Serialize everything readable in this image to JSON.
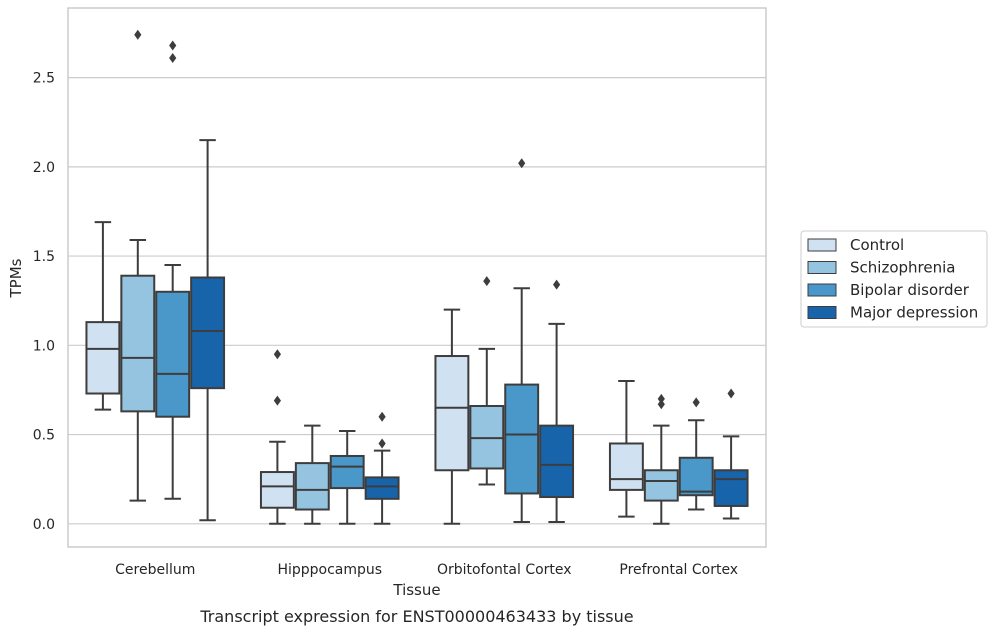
{
  "chart_data": {
    "type": "boxplot",
    "title": "",
    "caption": "Transcript expression for ENST00000463433 by tissue",
    "xlabel": "Tissue",
    "ylabel": "TPMs",
    "ylim": [
      -0.13,
      2.89
    ],
    "yticks": [
      0.0,
      0.5,
      1.0,
      1.5,
      2.0,
      2.5
    ],
    "ytick_labels": [
      "0.0",
      "0.5",
      "1.0",
      "1.5",
      "2.0",
      "2.5"
    ],
    "grid": "horizontal",
    "legend_position": "right",
    "categories": [
      "Cerebellum",
      "Hipppocampus",
      "Orbitofontal Cortex",
      "Prefrontal Cortex"
    ],
    "series": [
      {
        "name": "Control",
        "color": "#d0e1f2",
        "boxes": [
          {
            "whisker_low": 0.64,
            "q1": 0.73,
            "median": 0.98,
            "q3": 1.13,
            "whisker_high": 1.69,
            "outliers": []
          },
          {
            "whisker_low": 0.0,
            "q1": 0.09,
            "median": 0.21,
            "q3": 0.29,
            "whisker_high": 0.46,
            "outliers": [
              0.69,
              0.95
            ]
          },
          {
            "whisker_low": 0.0,
            "q1": 0.3,
            "median": 0.65,
            "q3": 0.94,
            "whisker_high": 1.2,
            "outliers": []
          },
          {
            "whisker_low": 0.04,
            "q1": 0.19,
            "median": 0.25,
            "q3": 0.45,
            "whisker_high": 0.8,
            "outliers": []
          }
        ]
      },
      {
        "name": "Schizophrenia",
        "color": "#94c4df",
        "boxes": [
          {
            "whisker_low": 0.13,
            "q1": 0.63,
            "median": 0.93,
            "q3": 1.39,
            "whisker_high": 1.59,
            "outliers": [
              2.74
            ]
          },
          {
            "whisker_low": 0.0,
            "q1": 0.08,
            "median": 0.19,
            "q3": 0.34,
            "whisker_high": 0.55,
            "outliers": []
          },
          {
            "whisker_low": 0.22,
            "q1": 0.31,
            "median": 0.48,
            "q3": 0.66,
            "whisker_high": 0.98,
            "outliers": [
              1.36
            ]
          },
          {
            "whisker_low": 0.0,
            "q1": 0.13,
            "median": 0.24,
            "q3": 0.3,
            "whisker_high": 0.55,
            "outliers": [
              0.67,
              0.7
            ]
          }
        ]
      },
      {
        "name": "Bipolar disorder",
        "color": "#4a98c9",
        "boxes": [
          {
            "whisker_low": 0.14,
            "q1": 0.6,
            "median": 0.84,
            "q3": 1.3,
            "whisker_high": 1.45,
            "outliers": [
              2.61,
              2.68
            ]
          },
          {
            "whisker_low": 0.0,
            "q1": 0.2,
            "median": 0.32,
            "q3": 0.38,
            "whisker_high": 0.52,
            "outliers": []
          },
          {
            "whisker_low": 0.01,
            "q1": 0.17,
            "median": 0.5,
            "q3": 0.78,
            "whisker_high": 1.32,
            "outliers": [
              2.02
            ]
          },
          {
            "whisker_low": 0.08,
            "q1": 0.16,
            "median": 0.18,
            "q3": 0.37,
            "whisker_high": 0.58,
            "outliers": [
              0.68
            ]
          }
        ]
      },
      {
        "name": "Major depression",
        "color": "#1764ab",
        "boxes": [
          {
            "whisker_low": 0.02,
            "q1": 0.76,
            "median": 1.08,
            "q3": 1.38,
            "whisker_high": 2.15,
            "outliers": []
          },
          {
            "whisker_low": 0.0,
            "q1": 0.14,
            "median": 0.21,
            "q3": 0.26,
            "whisker_high": 0.41,
            "outliers": [
              0.45,
              0.6
            ]
          },
          {
            "whisker_low": 0.01,
            "q1": 0.15,
            "median": 0.33,
            "q3": 0.55,
            "whisker_high": 1.12,
            "outliers": [
              1.34
            ]
          },
          {
            "whisker_low": 0.03,
            "q1": 0.1,
            "median": 0.25,
            "q3": 0.3,
            "whisker_high": 0.49,
            "outliers": [
              0.73
            ]
          }
        ]
      }
    ]
  }
}
